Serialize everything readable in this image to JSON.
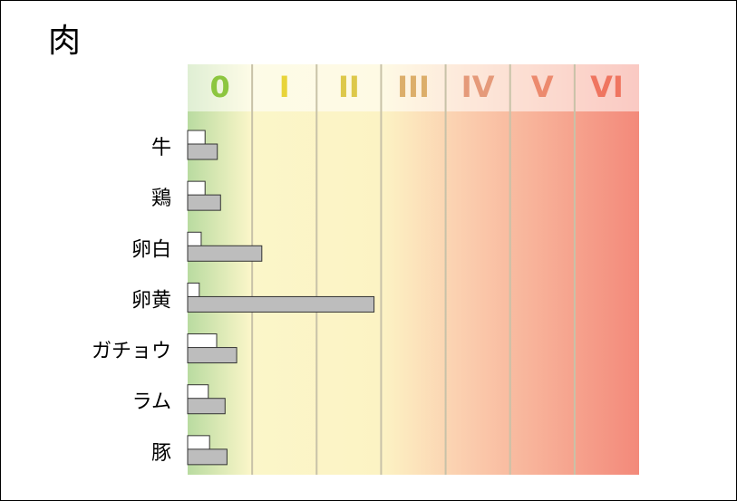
{
  "chart_data": {
    "type": "bar",
    "orientation": "horizontal",
    "title": "肉",
    "categories": [
      "牛",
      "鶏",
      "卵白",
      "卵黄",
      "ガチョウ",
      "ラム",
      "豚"
    ],
    "series": [
      {
        "color": "#ffffff",
        "values": [
          0.27,
          0.27,
          0.21,
          0.18,
          0.45,
          0.32,
          0.34
        ]
      },
      {
        "color": "#bdbdbd",
        "values": [
          0.46,
          0.51,
          1.15,
          2.89,
          0.76,
          0.58,
          0.61
        ]
      }
    ],
    "xlim": [
      0,
      7
    ],
    "xticks": [
      {
        "value": 0.5,
        "label": "0"
      },
      {
        "value": 1.5,
        "label": "I"
      },
      {
        "value": 2.5,
        "label": "II"
      },
      {
        "value": 3.5,
        "label": "III"
      },
      {
        "value": 4.5,
        "label": "IV"
      },
      {
        "value": 5.5,
        "label": "V"
      },
      {
        "value": 6.5,
        "label": "VI"
      }
    ],
    "xtick_colors": [
      "#8cc63f",
      "#e8d43a",
      "#ddc84a",
      "#dcae6a",
      "#e59a7a",
      "#ec8a6e",
      "#ef7560"
    ],
    "grid": true
  }
}
